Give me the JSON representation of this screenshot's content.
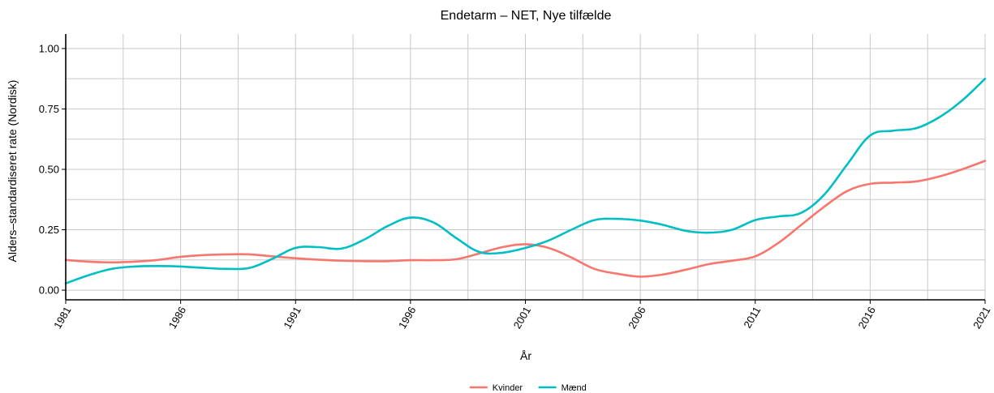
{
  "chart_data": {
    "type": "line",
    "title": "Endetarm – NET, Nye tilfælde",
    "xlabel": "År",
    "ylabel": "Alders–standardiseret rate (Nordisk)",
    "xlim": [
      1981,
      2021
    ],
    "ylim": [
      -0.04,
      1.06
    ],
    "x_ticks": [
      1981,
      1986,
      1991,
      1996,
      2001,
      2006,
      2011,
      2016,
      2021
    ],
    "y_ticks": [
      0,
      0.25,
      0.5,
      0.75,
      1.0
    ],
    "y_tick_labels": [
      "0.00",
      "0.25",
      "0.50",
      "0.75",
      "1.00"
    ],
    "grid": true,
    "legend_position": "bottom",
    "x": [
      1981,
      1982,
      1983,
      1984,
      1985,
      1986,
      1987,
      1988,
      1989,
      1990,
      1991,
      1992,
      1993,
      1994,
      1995,
      1996,
      1997,
      1998,
      1999,
      2000,
      2001,
      2002,
      2003,
      2004,
      2005,
      2006,
      2007,
      2008,
      2009,
      2010,
      2011,
      2012,
      2013,
      2014,
      2015,
      2016,
      2017,
      2018,
      2019,
      2020,
      2021
    ],
    "series": [
      {
        "name": "Kvinder",
        "color": "#F8766D",
        "values": [
          0.125,
          0.118,
          0.115,
          0.118,
          0.125,
          0.138,
          0.145,
          0.148,
          0.148,
          0.14,
          0.132,
          0.126,
          0.122,
          0.12,
          0.12,
          0.124,
          0.124,
          0.128,
          0.152,
          0.178,
          0.19,
          0.175,
          0.135,
          0.088,
          0.068,
          0.056,
          0.065,
          0.085,
          0.108,
          0.122,
          0.14,
          0.195,
          0.27,
          0.345,
          0.41,
          0.44,
          0.445,
          0.45,
          0.47,
          0.5,
          0.535
        ]
      },
      {
        "name": "Mænd",
        "color": "#00BFC4",
        "values": [
          0.028,
          0.062,
          0.088,
          0.098,
          0.1,
          0.098,
          0.092,
          0.088,
          0.092,
          0.13,
          0.175,
          0.178,
          0.172,
          0.21,
          0.265,
          0.3,
          0.28,
          0.215,
          0.158,
          0.155,
          0.175,
          0.205,
          0.25,
          0.29,
          0.295,
          0.288,
          0.27,
          0.245,
          0.238,
          0.25,
          0.29,
          0.305,
          0.32,
          0.395,
          0.52,
          0.64,
          0.66,
          0.67,
          0.715,
          0.785,
          0.875
        ]
      }
    ]
  }
}
